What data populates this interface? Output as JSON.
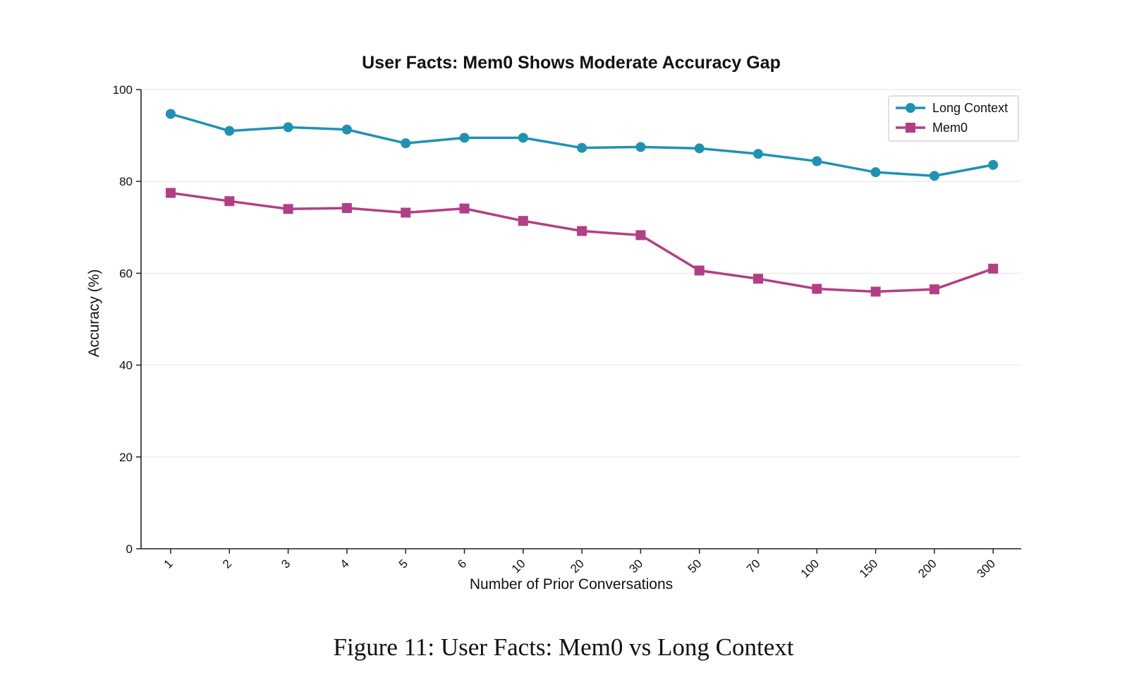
{
  "chart_data": {
    "type": "line",
    "title": "User Facts: Mem0 Shows Moderate Accuracy Gap",
    "xlabel": "Number of Prior Conversations",
    "ylabel": "Accuracy (%)",
    "categories": [
      "1",
      "2",
      "3",
      "4",
      "5",
      "6",
      "10",
      "20",
      "30",
      "50",
      "70",
      "100",
      "150",
      "200",
      "300"
    ],
    "ylim": [
      0,
      100
    ],
    "yticks": [
      "0",
      "20",
      "40",
      "60",
      "80",
      "100"
    ],
    "grid": "horizontal",
    "legend_position": "top-right",
    "series": [
      {
        "name": "Long Context",
        "color": "#1f92b3",
        "marker": "circle",
        "values": [
          94.7,
          91.0,
          91.8,
          91.3,
          88.3,
          89.5,
          89.5,
          87.3,
          87.5,
          87.2,
          86.0,
          84.4,
          82.0,
          81.2,
          83.6
        ]
      },
      {
        "name": "Mem0",
        "color": "#b23f85",
        "marker": "square",
        "values": [
          77.5,
          75.7,
          74.0,
          74.2,
          73.2,
          74.1,
          71.4,
          69.2,
          68.3,
          60.6,
          58.8,
          56.6,
          56.0,
          56.5,
          61.0
        ]
      }
    ]
  },
  "caption": "Figure 11: User Facts: Mem0 vs Long Context"
}
